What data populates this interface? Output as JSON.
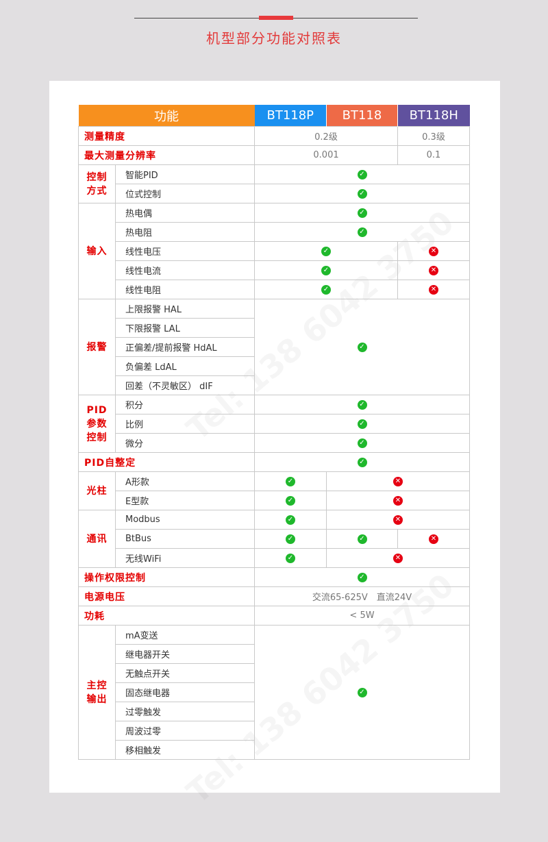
{
  "page": {
    "title": "机型部分功能对照表",
    "watermark": "Tel: 138 6042 3750"
  },
  "colors": {
    "func_header": "#f7901e",
    "bt118p": "#1a90f0",
    "bt118": "#ee6a47",
    "bt118h": "#60519e",
    "label_red": "#e40000",
    "check": "#1fb82c",
    "cross": "#e60012"
  },
  "header": {
    "function": "功能",
    "models": [
      "BT118P",
      "BT118",
      "BT118H"
    ]
  },
  "rows": [
    [
      {
        "t": "测量精度",
        "k": "lbl",
        "cs": 2
      },
      {
        "t": "0.2级",
        "k": "val",
        "cs": 2
      },
      {
        "t": "0.3级",
        "k": "val"
      }
    ],
    [
      {
        "t": "最大测量分辨率",
        "k": "lbl",
        "cs": 2
      },
      {
        "t": "0.001",
        "k": "val",
        "cs": 2
      },
      {
        "t": "0.1",
        "k": "val"
      }
    ],
    [
      {
        "t": "控制\n方式",
        "k": "grp",
        "rs": 2
      },
      {
        "t": "智能PID",
        "k": "item"
      },
      {
        "i": "check",
        "cs": 3
      }
    ],
    [
      {
        "t": "位式控制",
        "k": "item"
      },
      {
        "i": "check",
        "cs": 3
      }
    ],
    [
      {
        "t": "输入",
        "k": "grp",
        "rs": 5
      },
      {
        "t": "热电偶",
        "k": "item"
      },
      {
        "i": "check",
        "cs": 3
      }
    ],
    [
      {
        "t": "热电阻",
        "k": "item"
      },
      {
        "i": "check",
        "cs": 3
      }
    ],
    [
      {
        "t": "线性电压",
        "k": "item"
      },
      {
        "i": "check",
        "cs": 2
      },
      {
        "i": "cross"
      }
    ],
    [
      {
        "t": "线性电流",
        "k": "item"
      },
      {
        "i": "check",
        "cs": 2
      },
      {
        "i": "cross"
      }
    ],
    [
      {
        "t": "线性电阻",
        "k": "item"
      },
      {
        "i": "check",
        "cs": 2
      },
      {
        "i": "cross"
      }
    ],
    [
      {
        "t": "报警",
        "k": "grp",
        "rs": 5
      },
      {
        "t": "上限报警 HAL",
        "k": "item"
      },
      {
        "i": "check",
        "cs": 3,
        "rs": 5
      }
    ],
    [
      {
        "t": "下限报警 LAL",
        "k": "item"
      }
    ],
    [
      {
        "t": "正偏差/提前报警 HdAL",
        "k": "item"
      }
    ],
    [
      {
        "t": "负偏差 LdAL",
        "k": "item"
      }
    ],
    [
      {
        "t": "回差（不灵敏区） dIF",
        "k": "item"
      }
    ],
    [
      {
        "t": "PID\n参数\n控制",
        "k": "grp",
        "rs": 3
      },
      {
        "t": "积分",
        "k": "item"
      },
      {
        "i": "check",
        "cs": 3
      }
    ],
    [
      {
        "t": "比例",
        "k": "item"
      },
      {
        "i": "check",
        "cs": 3
      }
    ],
    [
      {
        "t": "微分",
        "k": "item"
      },
      {
        "i": "check",
        "cs": 3
      }
    ],
    [
      {
        "t": "PID自整定",
        "k": "lbl",
        "cs": 2
      },
      {
        "i": "check",
        "cs": 3
      }
    ],
    [
      {
        "t": "光柱",
        "k": "grp",
        "rs": 2
      },
      {
        "t": "A形款",
        "k": "item"
      },
      {
        "i": "check"
      },
      {
        "i": "cross",
        "cs": 2
      }
    ],
    [
      {
        "t": "E型款",
        "k": "item"
      },
      {
        "i": "check"
      },
      {
        "i": "cross",
        "cs": 2
      }
    ],
    [
      {
        "t": "通讯",
        "k": "grp",
        "rs": 3
      },
      {
        "t": "Modbus",
        "k": "item"
      },
      {
        "i": "check"
      },
      {
        "i": "cross",
        "cs": 2
      }
    ],
    [
      {
        "t": "BtBus",
        "k": "item"
      },
      {
        "i": "check"
      },
      {
        "i": "check"
      },
      {
        "i": "cross"
      }
    ],
    [
      {
        "t": "无线WiFi",
        "k": "item"
      },
      {
        "i": "check"
      },
      {
        "i": "cross",
        "cs": 2
      }
    ],
    [
      {
        "t": "操作权限控制",
        "k": "lbl",
        "cs": 2
      },
      {
        "i": "check",
        "cs": 3
      }
    ],
    [
      {
        "t": "电源电压",
        "k": "lbl",
        "cs": 2
      },
      {
        "t": "交流65-625V　直流24V",
        "k": "val",
        "cs": 3
      }
    ],
    [
      {
        "t": "功耗",
        "k": "lbl",
        "cs": 2
      },
      {
        "t": "< 5W",
        "k": "val",
        "cs": 3
      }
    ],
    [
      {
        "t": "主控\n输出",
        "k": "grp",
        "rs": 7
      },
      {
        "t": "mA变送",
        "k": "item"
      },
      {
        "i": "check",
        "cs": 3,
        "rs": 7
      }
    ],
    [
      {
        "t": "继电器开关",
        "k": "item"
      }
    ],
    [
      {
        "t": "无触点开关",
        "k": "item"
      }
    ],
    [
      {
        "t": "固态继电器",
        "k": "item"
      }
    ],
    [
      {
        "t": "过零触发",
        "k": "item"
      }
    ],
    [
      {
        "t": "周波过零",
        "k": "item"
      }
    ],
    [
      {
        "t": "移相触发",
        "k": "item"
      }
    ]
  ]
}
